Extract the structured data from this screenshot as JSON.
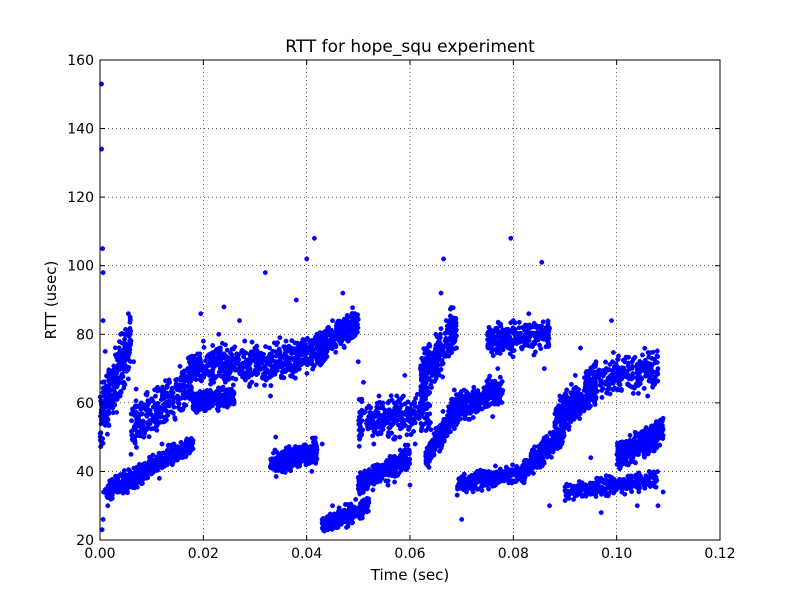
{
  "chart_data": {
    "type": "scatter",
    "title": "RTT for hope_squ experiment",
    "xlabel": "Time (sec)",
    "ylabel": "RTT (usec)",
    "xlim": [
      0,
      0.12
    ],
    "ylim": [
      20,
      160
    ],
    "xticks": [
      0,
      0.02,
      0.04,
      0.06,
      0.08,
      0.1,
      0.12
    ],
    "xtick_labels": [
      "0.00",
      "0.02",
      "0.04",
      "0.06",
      "0.08",
      "0.10",
      "0.12"
    ],
    "yticks": [
      20,
      40,
      60,
      80,
      100,
      120,
      140,
      160
    ],
    "ytick_labels": [
      "20",
      "40",
      "60",
      "80",
      "100",
      "120",
      "140",
      "160"
    ],
    "grid": true,
    "marker_color": "#0000ff",
    "series": [
      {
        "points": [
          [
            0.0003,
            153
          ],
          [
            0.0003,
            134
          ],
          [
            0.0005,
            105
          ],
          [
            0.0006,
            98
          ],
          [
            0.0006,
            84
          ],
          [
            0.0005,
            66
          ],
          [
            0.0008,
            62
          ],
          [
            0.0004,
            48
          ],
          [
            0.0007,
            34
          ],
          [
            0.0006,
            26
          ],
          [
            0.0004,
            23
          ],
          [
            0.001,
            75
          ],
          [
            0.002,
            68
          ],
          [
            0.0015,
            30
          ],
          [
            0.0025,
            36
          ],
          [
            0.003,
            74
          ],
          [
            0.004,
            80
          ],
          [
            0.005,
            70
          ],
          [
            0.005,
            38
          ],
          [
            0.0055,
            86
          ],
          [
            0.006,
            78
          ],
          [
            0.0065,
            72
          ],
          [
            0.006,
            45
          ],
          [
            0.007,
            64
          ],
          [
            0.0075,
            38
          ],
          [
            0.008,
            60
          ],
          [
            0.0085,
            50
          ],
          [
            0.009,
            58
          ],
          [
            0.0095,
            40
          ],
          [
            0.01,
            55
          ],
          [
            0.011,
            52
          ],
          [
            0.0115,
            38
          ],
          [
            0.012,
            48
          ],
          [
            0.013,
            60
          ],
          [
            0.014,
            42
          ],
          [
            0.015,
            62
          ],
          [
            0.016,
            58
          ],
          [
            0.0165,
            48
          ],
          [
            0.017,
            70
          ],
          [
            0.018,
            68
          ],
          [
            0.019,
            72
          ],
          [
            0.0195,
            86
          ],
          [
            0.02,
            78
          ],
          [
            0.021,
            74
          ],
          [
            0.022,
            66
          ],
          [
            0.023,
            80
          ],
          [
            0.024,
            88
          ],
          [
            0.025,
            72
          ],
          [
            0.026,
            70
          ],
          [
            0.027,
            84
          ],
          [
            0.028,
            78
          ],
          [
            0.029,
            68
          ],
          [
            0.03,
            76
          ],
          [
            0.031,
            70
          ],
          [
            0.032,
            98
          ],
          [
            0.033,
            62
          ],
          [
            0.034,
            72
          ],
          [
            0.034,
            50
          ],
          [
            0.035,
            44
          ],
          [
            0.036,
            78
          ],
          [
            0.037,
            70
          ],
          [
            0.037,
            44
          ],
          [
            0.038,
            90
          ],
          [
            0.039,
            74
          ],
          [
            0.04,
            46
          ],
          [
            0.04,
            102
          ],
          [
            0.041,
            40
          ],
          [
            0.042,
            80
          ],
          [
            0.0415,
            108
          ],
          [
            0.043,
            48
          ],
          [
            0.044,
            76
          ],
          [
            0.045,
            84
          ],
          [
            0.045,
            30
          ],
          [
            0.046,
            82
          ],
          [
            0.047,
            26
          ],
          [
            0.047,
            92
          ],
          [
            0.048,
            24
          ],
          [
            0.048,
            78
          ],
          [
            0.049,
            86
          ],
          [
            0.05,
            72
          ],
          [
            0.05,
            36
          ],
          [
            0.051,
            66
          ],
          [
            0.052,
            56
          ],
          [
            0.052,
            32
          ],
          [
            0.053,
            48
          ],
          [
            0.054,
            62
          ],
          [
            0.055,
            40
          ],
          [
            0.056,
            58
          ],
          [
            0.057,
            44
          ],
          [
            0.058,
            50
          ],
          [
            0.059,
            68
          ],
          [
            0.06,
            56
          ],
          [
            0.06,
            36
          ],
          [
            0.061,
            48
          ],
          [
            0.062,
            60
          ],
          [
            0.063,
            54
          ],
          [
            0.064,
            72
          ],
          [
            0.065,
            80
          ],
          [
            0.066,
            92
          ],
          [
            0.067,
            84
          ],
          [
            0.0665,
            102
          ],
          [
            0.068,
            60
          ],
          [
            0.069,
            76
          ],
          [
            0.07,
            36
          ],
          [
            0.07,
            26
          ],
          [
            0.071,
            58
          ],
          [
            0.072,
            62
          ],
          [
            0.073,
            40
          ],
          [
            0.074,
            60
          ],
          [
            0.075,
            36
          ],
          [
            0.076,
            56
          ],
          [
            0.077,
            70
          ],
          [
            0.078,
            80
          ],
          [
            0.079,
            76
          ],
          [
            0.0795,
            108
          ],
          [
            0.08,
            84
          ],
          [
            0.081,
            78
          ],
          [
            0.082,
            40
          ],
          [
            0.083,
            86
          ],
          [
            0.084,
            74
          ],
          [
            0.085,
            82
          ],
          [
            0.0855,
            101
          ],
          [
            0.086,
            70
          ],
          [
            0.087,
            30
          ],
          [
            0.088,
            48
          ],
          [
            0.089,
            62
          ],
          [
            0.09,
            58
          ],
          [
            0.091,
            36
          ],
          [
            0.092,
            68
          ],
          [
            0.093,
            76
          ],
          [
            0.094,
            62
          ],
          [
            0.095,
            44
          ],
          [
            0.096,
            72
          ],
          [
            0.097,
            28
          ],
          [
            0.098,
            70
          ],
          [
            0.099,
            84
          ],
          [
            0.1,
            64
          ],
          [
            0.101,
            34
          ],
          [
            0.102,
            68
          ],
          [
            0.103,
            72
          ],
          [
            0.104,
            30
          ],
          [
            0.105,
            74
          ],
          [
            0.106,
            62
          ],
          [
            0.107,
            48
          ],
          [
            0.108,
            70
          ],
          [
            0.108,
            30
          ],
          [
            0.1085,
            54
          ],
          [
            0.109,
            34
          ]
        ],
        "bands": [
          {
            "x": [
              0.0,
              0.006
            ],
            "center": [
              55,
              78
            ],
            "spread": 12
          },
          {
            "x": [
              0.001,
              0.009
            ],
            "center": [
              34,
              40
            ],
            "spread": 4
          },
          {
            "x": [
              0.006,
              0.018
            ],
            "center": [
              52,
              66
            ],
            "spread": 10
          },
          {
            "x": [
              0.008,
              0.018
            ],
            "center": [
              40,
              48
            ],
            "spread": 4
          },
          {
            "x": [
              0.017,
              0.031
            ],
            "center": [
              70,
              72
            ],
            "spread": 8
          },
          {
            "x": [
              0.018,
              0.026
            ],
            "center": [
              60,
              62
            ],
            "spread": 4
          },
          {
            "x": [
              0.03,
              0.044
            ],
            "center": [
              70,
              76
            ],
            "spread": 8
          },
          {
            "x": [
              0.033,
              0.042
            ],
            "center": [
              42,
              46
            ],
            "spread": 5
          },
          {
            "x": [
              0.042,
              0.05
            ],
            "center": [
              76,
              84
            ],
            "spread": 6
          },
          {
            "x": [
              0.043,
              0.052
            ],
            "center": [
              24,
              30
            ],
            "spread": 4
          },
          {
            "x": [
              0.05,
              0.064
            ],
            "center": [
              54,
              58
            ],
            "spread": 8
          },
          {
            "x": [
              0.05,
              0.06
            ],
            "center": [
              36,
              44
            ],
            "spread": 5
          },
          {
            "x": [
              0.062,
              0.069
            ],
            "center": [
              66,
              82
            ],
            "spread": 10
          },
          {
            "x": [
              0.063,
              0.07
            ],
            "center": [
              44,
              60
            ],
            "spread": 6
          },
          {
            "x": [
              0.069,
              0.082
            ],
            "center": [
              36,
              40
            ],
            "spread": 4
          },
          {
            "x": [
              0.068,
              0.078
            ],
            "center": [
              58,
              64
            ],
            "spread": 6
          },
          {
            "x": [
              0.075,
              0.087
            ],
            "center": [
              78,
              80
            ],
            "spread": 6
          },
          {
            "x": [
              0.082,
              0.09
            ],
            "center": [
              40,
              52
            ],
            "spread": 5
          },
          {
            "x": [
              0.088,
              0.096
            ],
            "center": [
              56,
              64
            ],
            "spread": 7
          },
          {
            "x": [
              0.09,
              0.108
            ],
            "center": [
              34,
              38
            ],
            "spread": 4
          },
          {
            "x": [
              0.094,
              0.108
            ],
            "center": [
              66,
              70
            ],
            "spread": 8
          },
          {
            "x": [
              0.1,
              0.109
            ],
            "center": [
              44,
              52
            ],
            "spread": 6
          }
        ]
      }
    ]
  }
}
